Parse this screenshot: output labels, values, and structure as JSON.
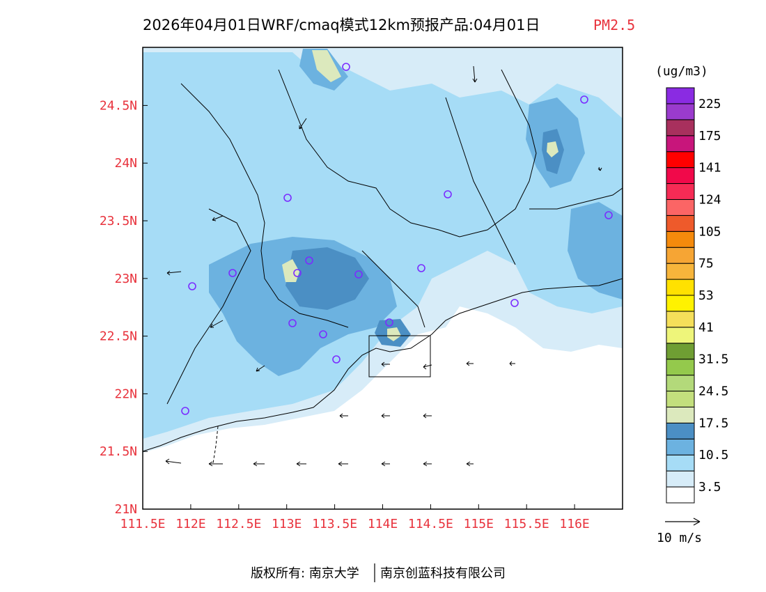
{
  "title": {
    "main": "2026年04月01日WRF/cmaq模式12km预报产品:04月01日",
    "pollutant": "PM2.5"
  },
  "colors": {
    "title_text": "#000000",
    "pollutant_text": "#e8323c",
    "axis_labels": "#e8323c"
  },
  "axes": {
    "lon_labels": [
      "111.5E",
      "112E",
      "112.5E",
      "113E",
      "113.5E",
      "114E",
      "114.5E",
      "115E",
      "115.5E",
      "116E"
    ],
    "lat_labels": [
      "21N",
      "21.5N",
      "22N",
      "22.5N",
      "23N",
      "23.5N",
      "24N",
      "24.5N"
    ]
  },
  "legend": {
    "unit": "(ug/m3)",
    "colors": [
      "#ffffff",
      "#d7ecf8",
      "#a6dcf6",
      "#6cb2e0",
      "#4b8fc4",
      "#dce9bd",
      "#c3df7d",
      "#b3d97a",
      "#94c94c",
      "#6f9e33",
      "#eef57a",
      "#f5df5a",
      "#fff200",
      "#ffe100",
      "#f7b53b",
      "#f6a534",
      "#f58a0c",
      "#ee5a2b",
      "#fb6565",
      "#f62b55",
      "#f1094a",
      "#ff0000",
      "#c8157b",
      "#a8305d",
      "#9a3bcd",
      "#8a2be2"
    ],
    "labels": [
      "3.5",
      "10.5",
      "17.5",
      "24.5",
      "31.5",
      "41",
      "53",
      "75",
      "105",
      "124",
      "141",
      "175",
      "225"
    ]
  },
  "wind_scale": {
    "label": "10 m/s"
  },
  "footer": {
    "copyright": "版权所有: 南京大学",
    "company": "南京创蓝科技有限公司"
  }
}
